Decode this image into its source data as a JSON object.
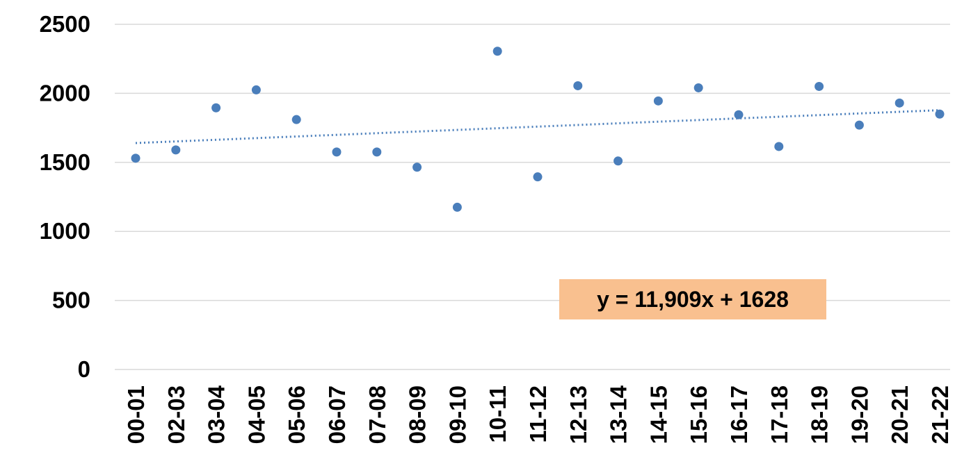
{
  "chart_data": {
    "type": "scatter",
    "categories": [
      "00-01",
      "02-03",
      "03-04",
      "04-05",
      "05-06",
      "06-07",
      "07-08",
      "08-09",
      "09-10",
      "10-11",
      "11-12",
      "12-13",
      "13-14",
      "14-15",
      "15-16",
      "16-17",
      "17-18",
      "18-19",
      "19-20",
      "20-21",
      "21-22"
    ],
    "values": [
      1530,
      1590,
      1895,
      2025,
      1810,
      1575,
      1575,
      1465,
      1175,
      2305,
      1395,
      2055,
      1510,
      1945,
      2040,
      1845,
      1615,
      2050,
      1770,
      1930,
      1850
    ],
    "ylim": [
      0,
      2500
    ],
    "yticks": [
      0,
      500,
      1000,
      1500,
      2000,
      2500
    ],
    "grid": true,
    "trendline": {
      "type": "linear",
      "slope": 11.909,
      "intercept": 1628,
      "equation": "y = 11,909x + 1628"
    },
    "colors": {
      "points": "#4a7ebb",
      "trendline": "#4a7ebb",
      "equation_box": "#f9c08f",
      "grid": "#d9d9d9"
    }
  }
}
